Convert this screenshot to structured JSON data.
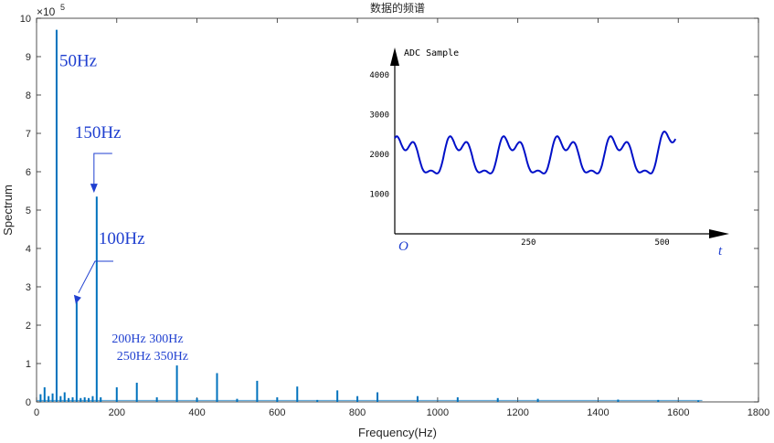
{
  "chart_data": [
    {
      "type": "bar",
      "title": "数据的频谱",
      "xlabel": "Frequency(Hz)",
      "ylabel": "Spectrum",
      "exponent_label": "×10",
      "exponent_power": "5",
      "xlim": [
        0,
        1800
      ],
      "ylim": [
        0,
        10
      ],
      "x_ticks": [
        0,
        200,
        400,
        600,
        800,
        1000,
        1200,
        1400,
        1600,
        1800
      ],
      "y_ticks": [
        0,
        1,
        2,
        3,
        4,
        5,
        6,
        7,
        8,
        9,
        10
      ],
      "grid": false,
      "color": "#0072BD",
      "x": [
        10,
        20,
        30,
        40,
        50,
        60,
        70,
        80,
        90,
        100,
        110,
        120,
        130,
        140,
        150,
        160,
        200,
        250,
        300,
        350,
        400,
        450,
        500,
        550,
        600,
        650,
        700,
        750,
        800,
        850,
        950,
        1050,
        1150,
        1250,
        1450,
        1550,
        1650
      ],
      "values": [
        0.2,
        0.38,
        0.15,
        0.22,
        9.7,
        0.15,
        0.25,
        0.1,
        0.12,
        2.6,
        0.1,
        0.12,
        0.1,
        0.15,
        5.35,
        0.12,
        0.38,
        0.5,
        0.12,
        0.95,
        0.1,
        0.75,
        0.08,
        0.55,
        0.12,
        0.4,
        0.05,
        0.3,
        0.15,
        0.25,
        0.15,
        0.12,
        0.1,
        0.08,
        0.06,
        0.05,
        0.04
      ],
      "annotations": [
        {
          "label": "50Hz",
          "x": 50,
          "y": 8.7
        },
        {
          "label": "150Hz",
          "x": 150,
          "y": 5.4,
          "arrow": true
        },
        {
          "label": "100Hz",
          "x": 100,
          "y": 2.6,
          "arrow": true
        },
        {
          "label": "200Hz 300Hz",
          "x": 165,
          "y": 1.55
        },
        {
          "label": "250Hz 350Hz",
          "x": 200,
          "y": 1.1
        }
      ]
    },
    {
      "type": "line",
      "title": "ADC Sample",
      "xlabel": "t",
      "origin_label": "O",
      "xlim": [
        0,
        620
      ],
      "ylim": [
        0,
        4500
      ],
      "x_ticks": [
        250,
        500
      ],
      "y_ticks": [
        1000,
        2000,
        3000,
        4000
      ],
      "color": "#0010c8",
      "period": 100,
      "mean": 1950,
      "samples": 525
    }
  ]
}
